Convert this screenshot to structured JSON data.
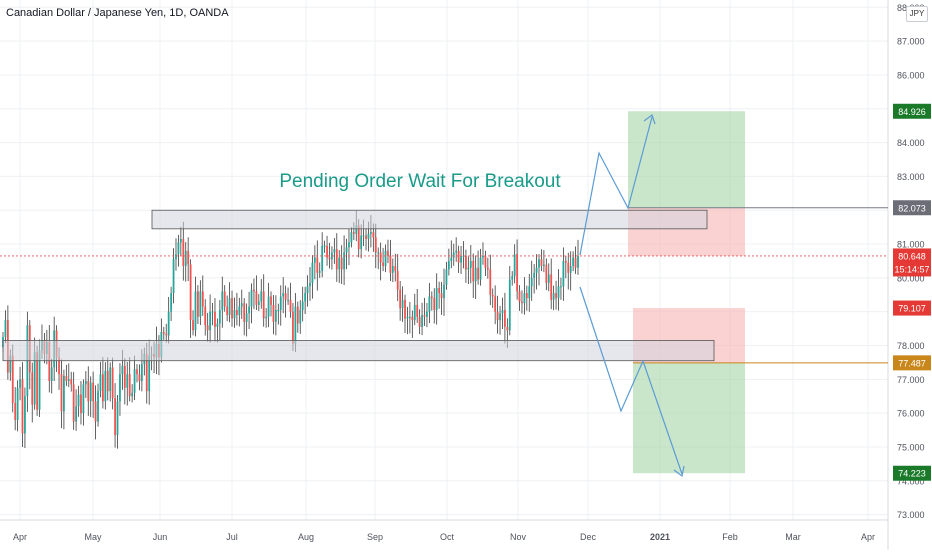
{
  "header": {
    "symbol_title": "Canadian Dollar / Japanese Yen, 1D, OANDA",
    "currency_button": "JPY"
  },
  "colors": {
    "up_candle": "#26a69a",
    "down_candle": "#ef5350",
    "zone_fill": "#d1d4dc",
    "target_zone": "#a5d6a7",
    "stop_zone": "#f8b4b4",
    "arrow": "#5b9bd5",
    "annotation_text": "#1a9b8a",
    "axis_text": "#50535e",
    "grid": "#eef0f3"
  },
  "chart_data": {
    "type": "candlestick",
    "title": "Canadian Dollar / Japanese Yen, 1D, OANDA",
    "annotation": "Pending Order Wait For Breakout",
    "grid": true,
    "y_axis": {
      "position": "right",
      "range": [
        72.6,
        88.1
      ],
      "ticks": [
        "73.000",
        "74.000",
        "75.000",
        "76.000",
        "77.000",
        "78.000",
        "79.000",
        "80.000",
        "81.000",
        "82.000",
        "83.000",
        "84.000",
        "85.000",
        "86.000",
        "87.000",
        "88.000"
      ]
    },
    "x_axis": {
      "ticks": [
        "Apr",
        "May",
        "Jun",
        "Jul",
        "Aug",
        "Sep",
        "Oct",
        "Nov",
        "Dec",
        "2021",
        "Feb",
        "Mar",
        "Apr"
      ]
    },
    "price_labels": [
      {
        "value": "84.926",
        "kind": "target"
      },
      {
        "value": "82.073",
        "kind": "entry"
      },
      {
        "value": "80.648",
        "kind": "last"
      },
      {
        "value": "15:14:57",
        "kind": "countdown"
      },
      {
        "value": "79.107",
        "kind": "stop"
      },
      {
        "value": "77.487",
        "kind": "entry"
      },
      {
        "value": "74.223",
        "kind": "target"
      }
    ],
    "zones": [
      {
        "name": "resistance",
        "low": 81.45,
        "high": 82.0
      },
      {
        "name": "support",
        "low": 77.55,
        "high": 78.15
      }
    ],
    "trades": [
      {
        "direction": "long",
        "entry": 82.073,
        "stop": 80.648,
        "target": 84.926
      },
      {
        "direction": "short",
        "entry": 77.487,
        "stop": 79.107,
        "target": 74.223
      }
    ],
    "series": [
      {
        "close": [
          78.25,
          78.75,
          77.2,
          77.7,
          76.3,
          75.8,
          76.75,
          77.0,
          75.4,
          76.5,
          78.6,
          77.2,
          76.25,
          77.8,
          76.1,
          77.85,
          78.15,
          77.75,
          78.1,
          76.95,
          77.35,
          78.45,
          77.65,
          77.15,
          76.05,
          77.1,
          76.95,
          77.0,
          76.85,
          75.75,
          76.2,
          76.55,
          76.0,
          76.85,
          76.95,
          76.35,
          76.9,
          76.35,
          75.75,
          76.65,
          77.15,
          76.35,
          77.25,
          76.65,
          77.35,
          76.45,
          75.35,
          76.35,
          77.15,
          77.4,
          76.75,
          77.15,
          76.5,
          76.6,
          77.3,
          77.15,
          76.95,
          77.45,
          77.75,
          76.65,
          77.7,
          77.75,
          77.65,
          78.05,
          77.65,
          78.4,
          78.35,
          78.3,
          79.0,
          79.55,
          80.55,
          80.7,
          81.05,
          81.15,
          80.35,
          80.8,
          80.4,
          78.75,
          78.45,
          79.6,
          78.85,
          79.6,
          79.15,
          78.6,
          78.45,
          79.0,
          79.0,
          78.55,
          78.65,
          79.05,
          79.6,
          79.15,
          78.9,
          79.4,
          78.8,
          79.05,
          78.9,
          79.15,
          79.25,
          78.7,
          78.95,
          79.15,
          79.65,
          79.6,
          79.2,
          79.3,
          79.6,
          78.8,
          78.85,
          79.45,
          79.2,
          78.7,
          79.05,
          79.05,
          79.45,
          79.55,
          79.35,
          79.35,
          79.0,
          78.05,
          79.15,
          78.65,
          79.05,
          79.3,
          79.55,
          79.75,
          79.85,
          80.45,
          80.6,
          80.15,
          80.2,
          80.95,
          80.95,
          80.6,
          80.55,
          80.75,
          80.85,
          80.25,
          80.6,
          80.25,
          80.75,
          80.9,
          81.05,
          81.35,
          81.3,
          81.55,
          80.85,
          81.25,
          81.25,
          81.15,
          81.3,
          81.35,
          81.2,
          80.75,
          80.75,
          80.45,
          80.35,
          80.8,
          80.65,
          80.15,
          80.35,
          80.2,
          79.65,
          79.1,
          79.35,
          78.8,
          78.85,
          78.85,
          78.75,
          79.2,
          78.85,
          78.55,
          78.9,
          78.85,
          79.0,
          79.45,
          79.4,
          79.05,
          79.7,
          79.55,
          79.4,
          79.8,
          80.25,
          80.5,
          80.6,
          80.75,
          80.8,
          80.45,
          80.65,
          80.65,
          80.25,
          80.3,
          80.5,
          79.9,
          80.3,
          79.95,
          80.6,
          80.65,
          80.3,
          80.25,
          79.5,
          79.45,
          79.0,
          78.75,
          78.95,
          79.05,
          78.55,
          78.45,
          79.95,
          80.05,
          80.7,
          79.6,
          79.3,
          79.25,
          79.55,
          79.4,
          79.75,
          80.0,
          80.15,
          80.3,
          80.55,
          80.35,
          80.39,
          79.85,
          80.1,
          79.35,
          79.55,
          79.4,
          79.75,
          79.75,
          80.5,
          80.45,
          80.15,
          80.35,
          80.6,
          80.3,
          80.65
        ]
      }
    ]
  }
}
